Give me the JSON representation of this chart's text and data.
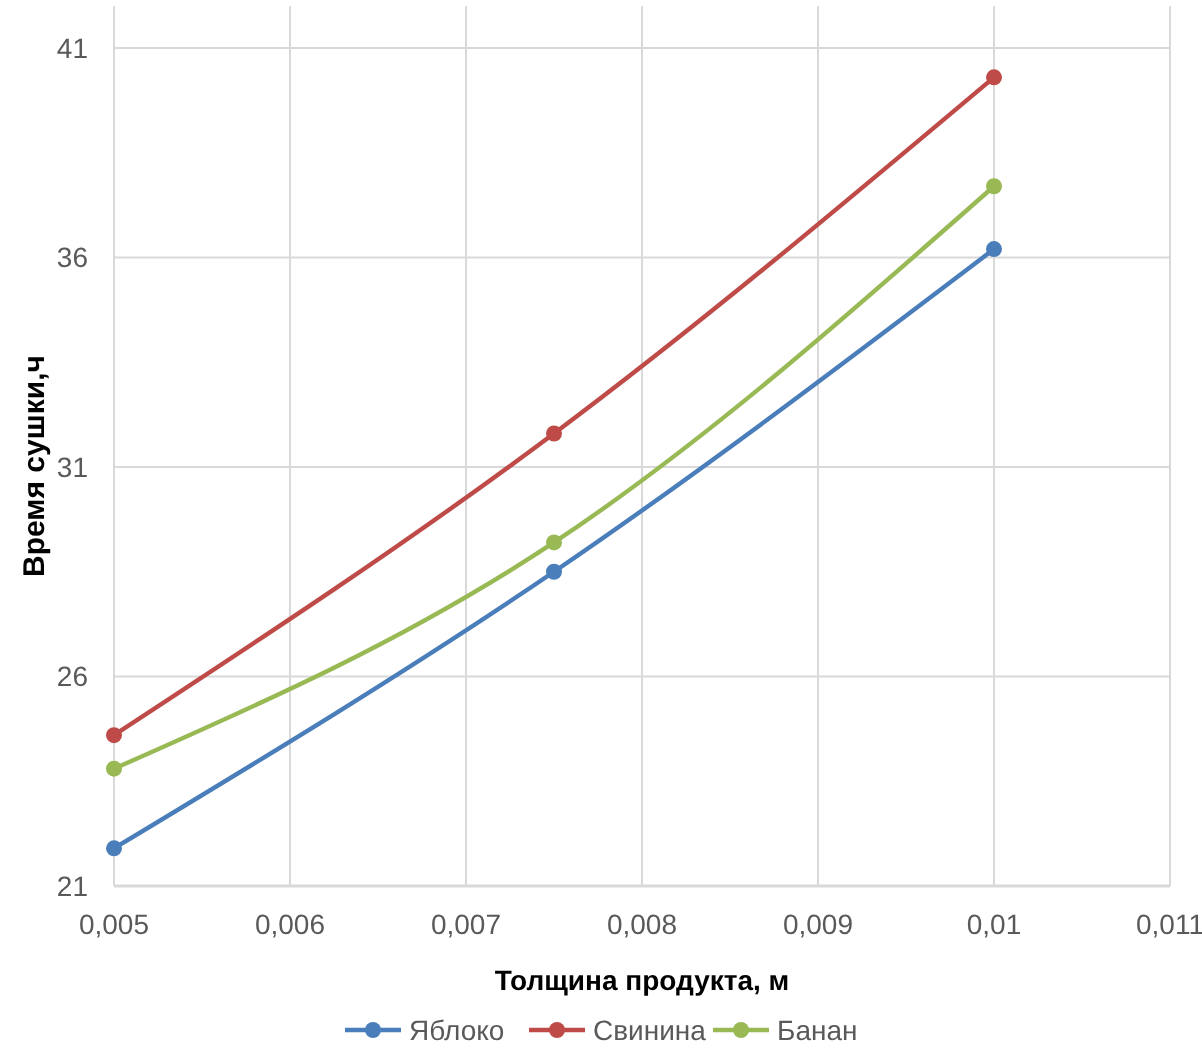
{
  "chart_data": {
    "type": "line",
    "xlabel": "Толщина продукта, м",
    "ylabel": "Время сушки,ч",
    "x": [
      0.005,
      0.0075,
      0.01
    ],
    "series": [
      {
        "name": "Яблоко",
        "color": "#4a7ebb",
        "values": [
          21.9,
          28.5,
          36.2
        ]
      },
      {
        "name": "Свинина",
        "color": "#be4b48",
        "values": [
          24.6,
          31.8,
          40.3
        ]
      },
      {
        "name": "Банан",
        "color": "#98b954",
        "values": [
          23.8,
          29.2,
          37.7
        ]
      }
    ],
    "xlim": [
      0.005,
      0.011
    ],
    "xticks": [
      {
        "value": 0.005,
        "label": "0,005"
      },
      {
        "value": 0.006,
        "label": "0,006"
      },
      {
        "value": 0.007,
        "label": "0,007"
      },
      {
        "value": 0.008,
        "label": "0,008"
      },
      {
        "value": 0.009,
        "label": "0,009"
      },
      {
        "value": 0.01,
        "label": "0,01"
      },
      {
        "value": 0.011,
        "label": "0,011"
      }
    ],
    "ylim": [
      21,
      42
    ],
    "yticks": [
      21,
      26,
      31,
      36,
      41
    ],
    "grid": true,
    "legend": "bottom",
    "marker": "circle",
    "line_style": "solid"
  }
}
